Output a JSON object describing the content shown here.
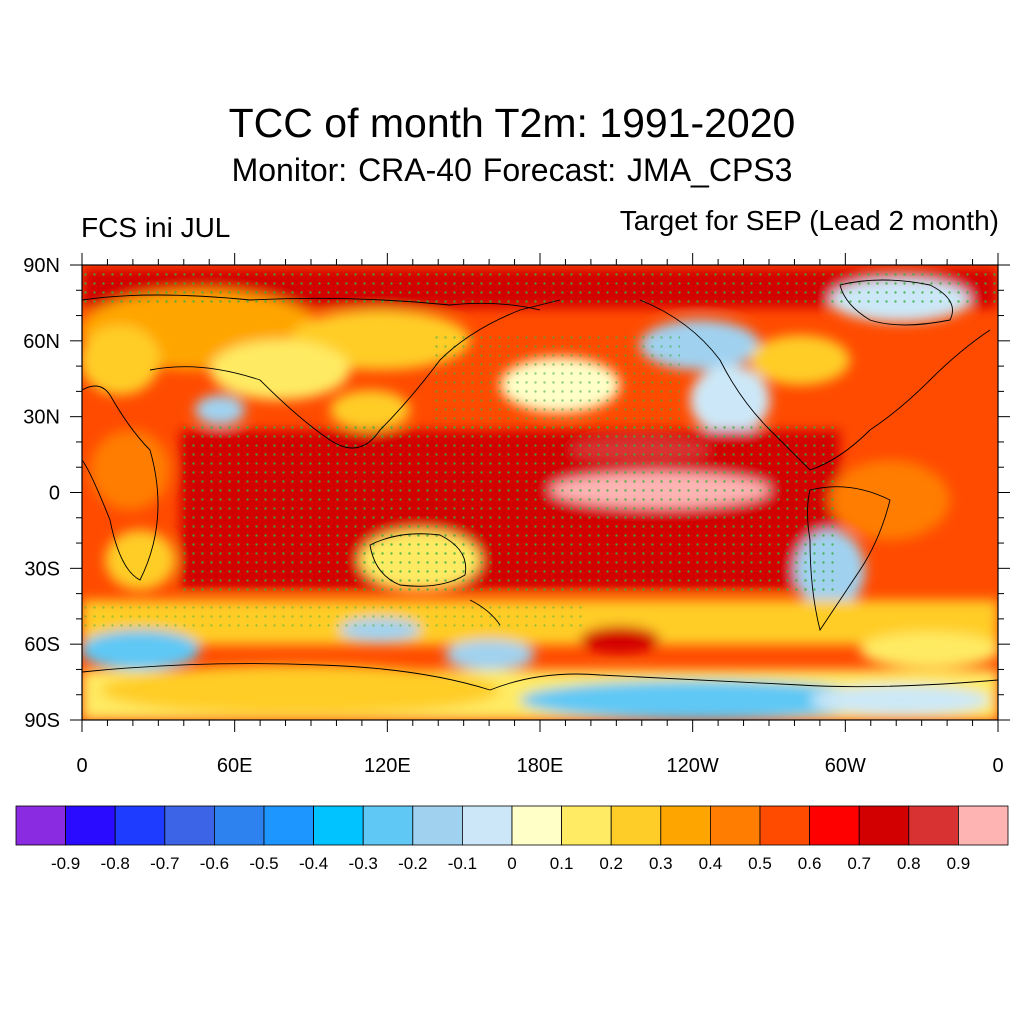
{
  "title": "TCC of month T2m: 1991-2020",
  "subtitle": "Monitor: CRA-40   Forecast: JMA_CPS3",
  "left_label": "FCS ini JUL",
  "right_label": "Target for SEP (Lead 2 month)",
  "map": {
    "lat_labels": [
      "90N",
      "60N",
      "30N",
      "0",
      "30S",
      "60S",
      "90S"
    ],
    "lon_labels": [
      "0",
      "60E",
      "120E",
      "180E",
      "120W",
      "60W",
      "0"
    ],
    "significance_dot_color": "#3cb043",
    "coastline_color": "#000000"
  },
  "colorbar": {
    "colors": [
      "#8a2be2",
      "#2a0bff",
      "#1e3cff",
      "#3c64e6",
      "#2d82f0",
      "#1e96ff",
      "#00c3ff",
      "#5fc8f5",
      "#a0d2f0",
      "#cce8f8",
      "#ffffc8",
      "#ffeb64",
      "#ffcd28",
      "#ffa500",
      "#ff7d00",
      "#ff4b00",
      "#ff0000",
      "#d20000",
      "#d83232",
      "#ffb4b4"
    ],
    "labels": [
      "-0.9",
      "-0.8",
      "-0.7",
      "-0.6",
      "-0.5",
      "-0.4",
      "-0.3",
      "-0.2",
      "-0.1",
      "0",
      "0.1",
      "0.2",
      "0.3",
      "0.4",
      "0.5",
      "0.6",
      "0.7",
      "0.8",
      "0.9"
    ]
  }
}
